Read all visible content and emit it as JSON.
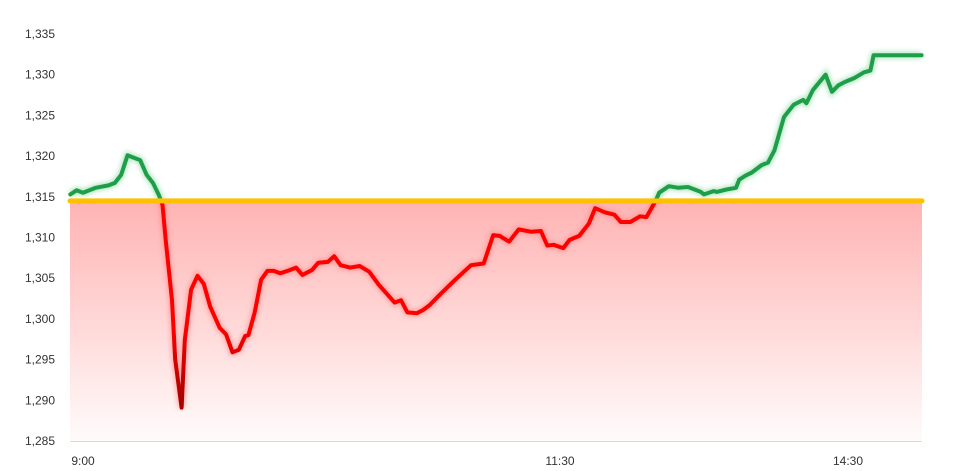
{
  "chart_data": {
    "type": "line",
    "title": "",
    "xlabel": "",
    "ylabel": "",
    "ylim": [
      1285,
      1335
    ],
    "yticks": [
      1285,
      1290,
      1295,
      1300,
      1305,
      1310,
      1315,
      1320,
      1325,
      1330,
      1335
    ],
    "ytick_labels": [
      "1,285",
      "1,290",
      "1,295",
      "1,300",
      "1,305",
      "1,310",
      "1,315",
      "1,320",
      "1,325",
      "1,330",
      "1,335"
    ],
    "xtick_labels": [
      "9:00",
      "11:30",
      "14:30"
    ],
    "session_break": [
      "11:30",
      "13:00"
    ],
    "grid": false,
    "baseline": 1314.5,
    "colors": {
      "above": "#1e9e48",
      "below": "#ff0000",
      "below_deep": "#a00000",
      "baseline": "#ffc000",
      "fill": "#ffb3b3",
      "axis": "#d9d9d9"
    },
    "series": [
      {
        "points": [
          [
            "8:56",
            1315.3
          ],
          [
            "8:58",
            1315.8
          ],
          [
            "9:00",
            1315.5
          ],
          [
            "9:04",
            1316.1
          ],
          [
            "9:08",
            1316.4
          ],
          [
            "9:10",
            1316.7
          ],
          [
            "9:12",
            1317.7
          ],
          [
            "9:14",
            1320.1
          ],
          [
            "9:16",
            1319.8
          ],
          [
            "9:18",
            1319.5
          ],
          [
            "9:20",
            1317.7
          ],
          [
            "9:22",
            1316.7
          ],
          [
            "9:24",
            1315.1
          ],
          [
            "9:25",
            1314.0
          ],
          [
            "9:26",
            1309.7
          ],
          [
            "9:28",
            1302.3
          ],
          [
            "9:29",
            1295.0
          ],
          [
            "9:31",
            1289.1
          ],
          [
            "9:32",
            1297.4
          ],
          [
            "9:34",
            1303.6
          ],
          [
            "9:36",
            1305.3
          ],
          [
            "9:38",
            1304.3
          ],
          [
            "9:40",
            1301.5
          ],
          [
            "9:43",
            1298.9
          ],
          [
            "9:45",
            1298.1
          ],
          [
            "9:47",
            1295.9
          ],
          [
            "9:49",
            1296.2
          ],
          [
            "9:51",
            1297.9
          ],
          [
            "9:52",
            1298.0
          ],
          [
            "9:54",
            1300.8
          ],
          [
            "9:56",
            1304.8
          ],
          [
            "9:58",
            1305.9
          ],
          [
            "10:00",
            1305.9
          ],
          [
            "10:02",
            1305.6
          ],
          [
            "10:05",
            1306.0
          ],
          [
            "10:07",
            1306.3
          ],
          [
            "10:09",
            1305.4
          ],
          [
            "10:12",
            1306.0
          ],
          [
            "10:14",
            1306.9
          ],
          [
            "10:17",
            1307.0
          ],
          [
            "10:19",
            1307.7
          ],
          [
            "10:21",
            1306.6
          ],
          [
            "10:24",
            1306.3
          ],
          [
            "10:27",
            1306.5
          ],
          [
            "10:30",
            1305.8
          ],
          [
            "10:33",
            1304.2
          ],
          [
            "10:38",
            1302.0
          ],
          [
            "10:40",
            1302.3
          ],
          [
            "10:42",
            1300.8
          ],
          [
            "10:45",
            1300.7
          ],
          [
            "10:47",
            1301.1
          ],
          [
            "10:49",
            1301.7
          ],
          [
            "10:52",
            1302.9
          ],
          [
            "10:57",
            1304.8
          ],
          [
            "11:02",
            1306.6
          ],
          [
            "11:06",
            1306.8
          ],
          [
            "11:09",
            1310.3
          ],
          [
            "11:11",
            1310.2
          ],
          [
            "11:14",
            1309.5
          ],
          [
            "11:17",
            1311.0
          ],
          [
            "11:21",
            1310.7
          ],
          [
            "11:24",
            1310.8
          ],
          [
            "11:26",
            1309.0
          ],
          [
            "11:28",
            1309.1
          ],
          [
            "13:01",
            1308.7
          ],
          [
            "13:03",
            1309.7
          ],
          [
            "13:06",
            1310.2
          ],
          [
            "13:09",
            1311.7
          ],
          [
            "13:11",
            1313.6
          ],
          [
            "13:14",
            1313.1
          ],
          [
            "13:17",
            1312.8
          ],
          [
            "13:19",
            1311.9
          ],
          [
            "13:22",
            1311.9
          ],
          [
            "13:25",
            1312.6
          ],
          [
            "13:27",
            1312.5
          ],
          [
            "13:30",
            1314.6
          ],
          [
            "13:31",
            1315.5
          ],
          [
            "13:34",
            1316.3
          ],
          [
            "13:37",
            1316.1
          ],
          [
            "13:40",
            1316.2
          ],
          [
            "13:44",
            1315.6
          ],
          [
            "13:45",
            1315.3
          ],
          [
            "13:48",
            1315.7
          ],
          [
            "13:49",
            1315.6
          ],
          [
            "13:52",
            1315.9
          ],
          [
            "13:55",
            1316.1
          ],
          [
            "13:56",
            1317.1
          ],
          [
            "13:58",
            1317.6
          ],
          [
            "14:00",
            1318.0
          ],
          [
            "14:03",
            1318.9
          ],
          [
            "14:05",
            1319.2
          ],
          [
            "14:07",
            1320.7
          ],
          [
            "14:10",
            1324.8
          ],
          [
            "14:13",
            1326.3
          ],
          [
            "14:16",
            1326.9
          ],
          [
            "14:17",
            1326.5
          ],
          [
            "14:19",
            1328.1
          ],
          [
            "14:23",
            1330.0
          ],
          [
            "14:25",
            1327.9
          ],
          [
            "14:27",
            1328.7
          ],
          [
            "14:29",
            1329.1
          ],
          [
            "14:32",
            1329.6
          ],
          [
            "14:35",
            1330.3
          ],
          [
            "14:37",
            1330.5
          ],
          [
            "14:38",
            1332.4
          ],
          [
            "14:53",
            1332.4
          ]
        ]
      }
    ]
  }
}
